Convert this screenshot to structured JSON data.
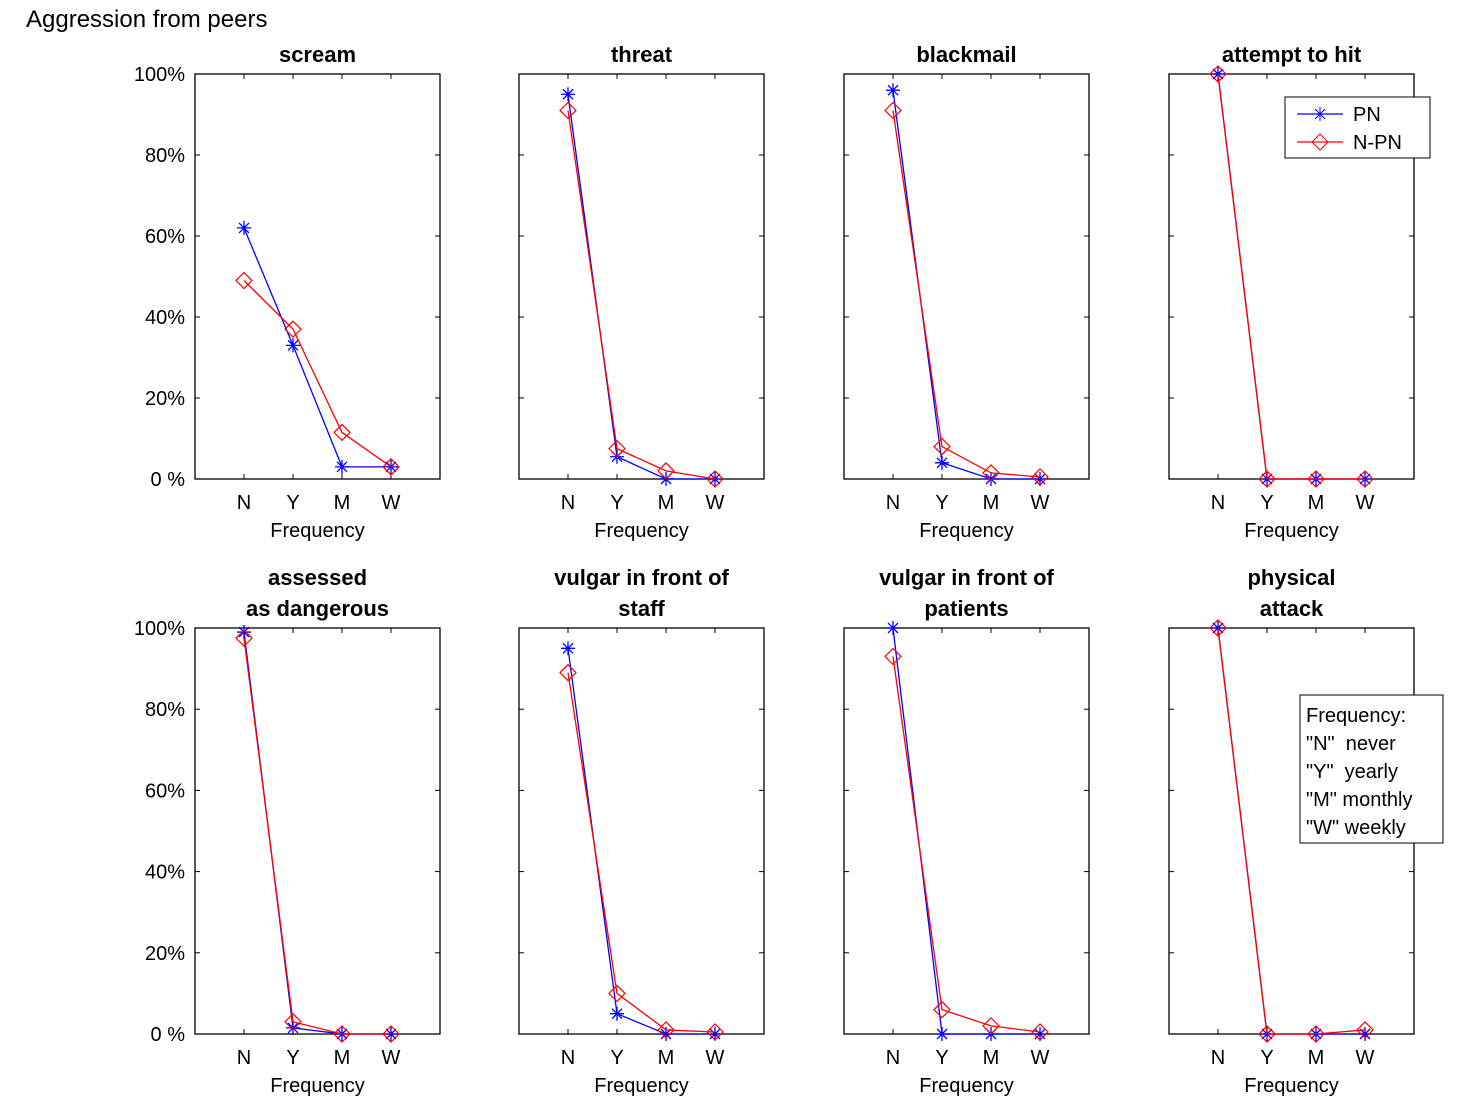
{
  "figure_title": "Aggression from peers",
  "chart_data": [
    {
      "type": "line",
      "title": [
        "scream"
      ],
      "xlabel": "Frequency",
      "categories": [
        "N",
        "Y",
        "M",
        "W"
      ],
      "ylim": [
        0,
        100
      ],
      "yticks": [
        "0 %",
        "20%",
        "40%",
        "60%",
        "80%",
        "100%"
      ],
      "series": [
        {
          "name": "PN",
          "values": [
            62,
            33,
            3,
            3
          ]
        },
        {
          "name": "N-PN",
          "values": [
            49,
            37,
            11.5,
            3
          ]
        }
      ]
    },
    {
      "type": "line",
      "title": [
        "threat"
      ],
      "xlabel": "Frequency",
      "categories": [
        "N",
        "Y",
        "M",
        "W"
      ],
      "ylim": [
        0,
        100
      ],
      "series": [
        {
          "name": "PN",
          "values": [
            95,
            5.5,
            0,
            0
          ]
        },
        {
          "name": "N-PN",
          "values": [
            91,
            7.5,
            2,
            0
          ]
        }
      ]
    },
    {
      "type": "line",
      "title": [
        "blackmail"
      ],
      "xlabel": "Frequency",
      "categories": [
        "N",
        "Y",
        "M",
        "W"
      ],
      "ylim": [
        0,
        100
      ],
      "series": [
        {
          "name": "PN",
          "values": [
            96,
            4,
            0,
            0
          ]
        },
        {
          "name": "N-PN",
          "values": [
            91,
            8,
            1.5,
            0.5
          ]
        }
      ]
    },
    {
      "type": "line",
      "title": [
        "attempt to hit"
      ],
      "xlabel": "Frequency",
      "categories": [
        "N",
        "Y",
        "M",
        "W"
      ],
      "ylim": [
        0,
        100
      ],
      "series": [
        {
          "name": "PN",
          "values": [
            100,
            0,
            0,
            0
          ]
        },
        {
          "name": "N-PN",
          "values": [
            100,
            0,
            0,
            0
          ]
        }
      ]
    },
    {
      "type": "line",
      "title": [
        "assessed",
        "as dangerous"
      ],
      "xlabel": "Frequency",
      "categories": [
        "N",
        "Y",
        "M",
        "W"
      ],
      "ylim": [
        0,
        100
      ],
      "yticks": [
        "0 %",
        "20%",
        "40%",
        "60%",
        "80%",
        "100%"
      ],
      "series": [
        {
          "name": "PN",
          "values": [
            99,
            1.5,
            0,
            0
          ]
        },
        {
          "name": "N-PN",
          "values": [
            97.5,
            3,
            0,
            0
          ]
        }
      ]
    },
    {
      "type": "line",
      "title": [
        "vulgar in front of",
        "staff"
      ],
      "xlabel": "Frequency",
      "categories": [
        "N",
        "Y",
        "M",
        "W"
      ],
      "ylim": [
        0,
        100
      ],
      "series": [
        {
          "name": "PN",
          "values": [
            95,
            5,
            0,
            0
          ]
        },
        {
          "name": "N-PN",
          "values": [
            89,
            10,
            1,
            0.5
          ]
        }
      ]
    },
    {
      "type": "line",
      "title": [
        "vulgar in front of",
        "patients"
      ],
      "xlabel": "Frequency",
      "categories": [
        "N",
        "Y",
        "M",
        "W"
      ],
      "ylim": [
        0,
        100
      ],
      "series": [
        {
          "name": "PN",
          "values": [
            100,
            0,
            0,
            0
          ]
        },
        {
          "name": "N-PN",
          "values": [
            93,
            6,
            2,
            0.5
          ]
        }
      ]
    },
    {
      "type": "line",
      "title": [
        "physical",
        "attack"
      ],
      "xlabel": "Frequency",
      "categories": [
        "N",
        "Y",
        "M",
        "W"
      ],
      "ylim": [
        0,
        100
      ],
      "series": [
        {
          "name": "PN",
          "values": [
            100,
            0,
            0,
            0
          ]
        },
        {
          "name": "N-PN",
          "values": [
            100,
            0,
            0,
            1
          ]
        }
      ]
    }
  ],
  "legend": {
    "placement": "top-right of 4th panel",
    "entries": [
      {
        "name": "PN",
        "color": "#0000ff",
        "marker": "star"
      },
      {
        "name": "N-PN",
        "color": "#ff0000",
        "marker": "diamond"
      }
    ]
  },
  "frequency_note": [
    "Frequency:",
    "\"N\"  never",
    "\"Y\"  yearly",
    "\"M\" monthly",
    "\"W\" weekly"
  ],
  "colors": {
    "PN": "#0000ff",
    "N-PN": "#ff0000"
  }
}
